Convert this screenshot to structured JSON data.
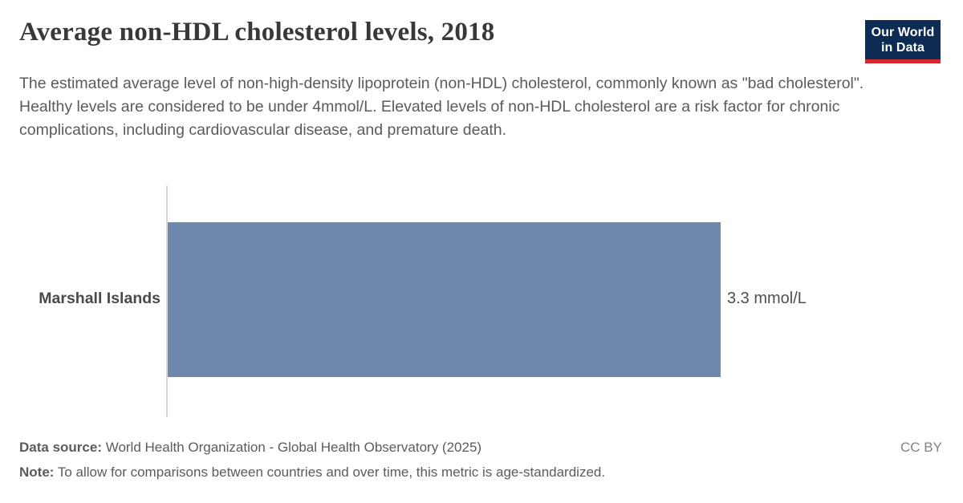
{
  "header": {
    "title": "Average non-HDL cholesterol levels, 2018",
    "logo": {
      "line1": "Our World",
      "line2": "in Data",
      "bg_color": "#0d2c54",
      "accent_color": "#d7282f"
    }
  },
  "subtitle": "The estimated average level of non-high-density lipoprotein (non-HDL) cholesterol, commonly known as \"bad cholesterol\". Healthy levels are considered to be under 4mmol/L. Elevated levels of non-HDL cholesterol are a risk factor for chronic complications, including cardiovascular disease, and premature death.",
  "chart_data": {
    "type": "bar",
    "orientation": "horizontal",
    "title": "Average non-HDL cholesterol levels, 2018",
    "categories": [
      "Marshall Islands"
    ],
    "values": [
      3.3
    ],
    "value_labels": [
      "3.3 mmol/L"
    ],
    "unit": "mmol/L",
    "xlim": [
      0,
      3.3
    ],
    "grid": false,
    "legend": "none",
    "bar_color": "#6e87ad",
    "axis_line_color": "#d9d9d9"
  },
  "footer": {
    "data_source_label": "Data source:",
    "data_source_text": " World Health Organization - Global Health Observatory (2025)",
    "note_label": "Note:",
    "note_text": " To allow for comparisons between countries and over time, this metric is age-standardized.",
    "license": "CC BY"
  }
}
